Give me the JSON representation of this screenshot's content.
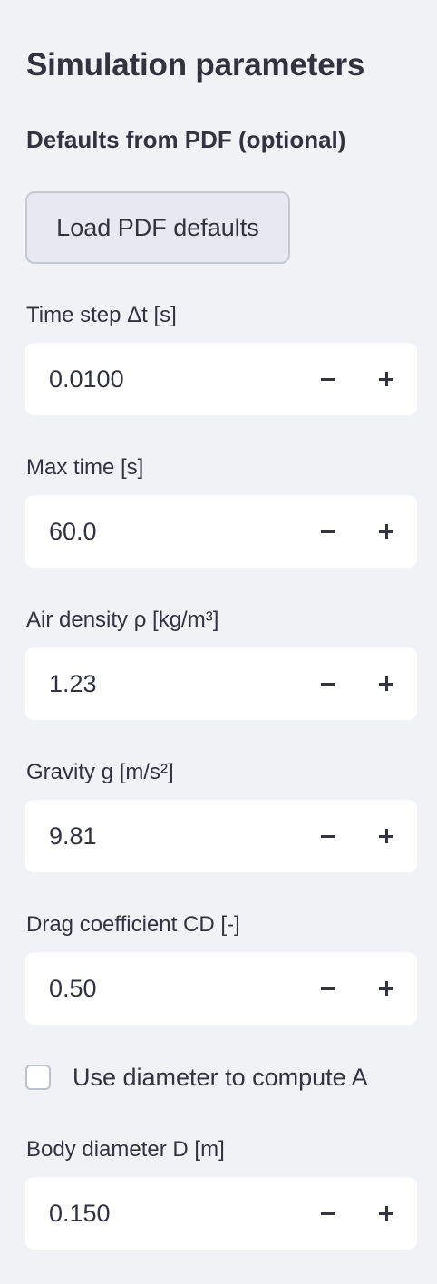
{
  "sidebar": {
    "title": "Simulation parameters",
    "subtitle": "Defaults from PDF (optional)",
    "load_button_label": "Load PDF defaults",
    "fields": [
      {
        "label": "Time step Δt [s]",
        "value": "0.0100"
      },
      {
        "label": "Max time [s]",
        "value": "60.0"
      },
      {
        "label": "Air density ρ [kg/m³]",
        "value": "1.23"
      },
      {
        "label": "Gravity g [m/s²]",
        "value": "9.81"
      },
      {
        "label": "Drag coefficient CD [-]",
        "value": "0.50"
      }
    ],
    "checkbox": {
      "label": "Use diameter to compute A",
      "checked": false
    },
    "diameter_field": {
      "label": "Body diameter D [m]",
      "value": "0.150"
    },
    "stepper_icons": {
      "decrement": "minus-icon",
      "increment": "plus-icon"
    }
  },
  "colors": {
    "background": "#f0f2f6",
    "input_background": "#ffffff",
    "text": "#31333f",
    "button_background": "#e6e9ef",
    "button_border": "#c5c9d1"
  }
}
